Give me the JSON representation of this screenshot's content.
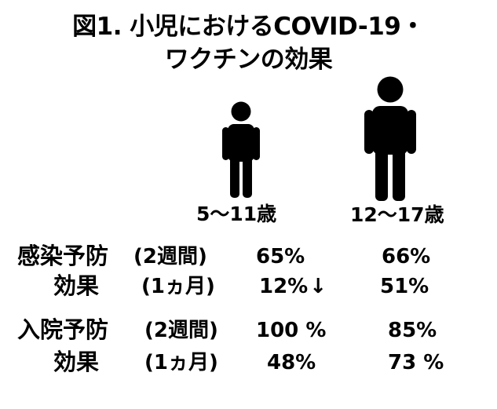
{
  "title": {
    "line1": "図1. 小児におけるCOVID-19・",
    "line2": "ワクチンの効果"
  },
  "groups": [
    {
      "age": "5〜11歳",
      "icon": "child-figure"
    },
    {
      "age": "12〜17歳",
      "icon": "adolescent-figure"
    }
  ],
  "rows": [
    {
      "label": "感染予防",
      "period": "(2週間)",
      "v1": "65%",
      "v2": "66%"
    },
    {
      "label": "効果",
      "period": "(1ヵ月)",
      "v1": "12%",
      "v1_arrow": "↓",
      "v2": "51%"
    },
    {
      "label": "入院予防",
      "period": "(2週間)",
      "v1": "100 %",
      "v2": "85%"
    },
    {
      "label": "効果",
      "period": "(1ヵ月)",
      "v1": "48%",
      "v2": "73 %"
    }
  ]
}
